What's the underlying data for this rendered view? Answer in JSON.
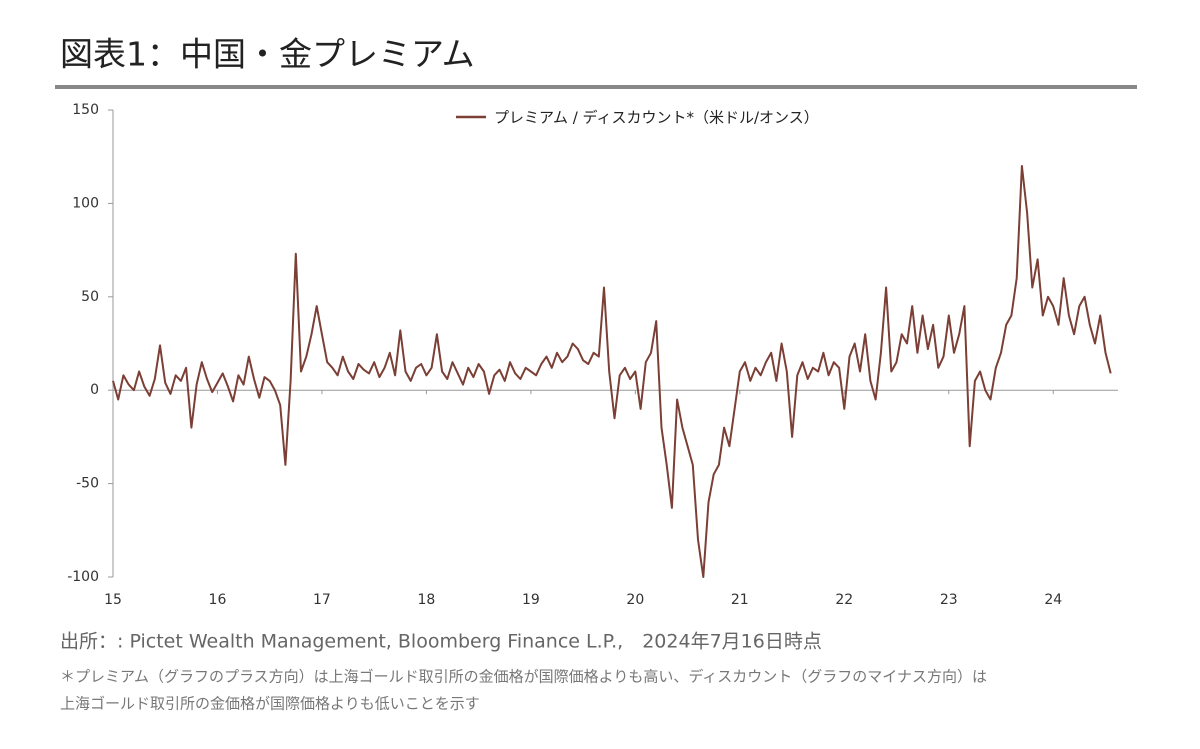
{
  "chart_data": {
    "type": "line",
    "title": "図表1：中国・金プレミアム",
    "source": "出所：: Pictet Wealth Management, Bloomberg Finance L.P.,　2024年7月16日時点",
    "notes": [
      "＊プレミアム（グラフのプラス方向）は上海ゴールド取引所の金価格が国際価格よりも高い、ディスカウント（グラフのマイナス方向）は",
      "上海ゴールド取引所の金価格が国際価格よりも低いことを示す"
    ],
    "xlim": [
      15,
      24.62
    ],
    "xticks": [
      15,
      16,
      17,
      18,
      19,
      20,
      21,
      22,
      23,
      24
    ],
    "ylim": [
      -100,
      150
    ],
    "yticks": [
      -100,
      -50,
      0,
      50,
      100,
      150
    ],
    "legend": "top",
    "x": [
      15.0,
      15.05,
      15.1,
      15.15,
      15.2,
      15.25,
      15.3,
      15.35,
      15.4,
      15.45,
      15.5,
      15.55,
      15.6,
      15.65,
      15.7,
      15.75,
      15.8,
      15.85,
      15.9,
      15.95,
      16.0,
      16.05,
      16.1,
      16.15,
      16.2,
      16.25,
      16.3,
      16.35,
      16.4,
      16.45,
      16.5,
      16.55,
      16.6,
      16.65,
      16.7,
      16.75,
      16.8,
      16.85,
      16.9,
      16.95,
      17.0,
      17.05,
      17.1,
      17.15,
      17.2,
      17.25,
      17.3,
      17.35,
      17.4,
      17.45,
      17.5,
      17.55,
      17.6,
      17.65,
      17.7,
      17.75,
      17.8,
      17.85,
      17.9,
      17.95,
      18.0,
      18.05,
      18.1,
      18.15,
      18.2,
      18.25,
      18.3,
      18.35,
      18.4,
      18.45,
      18.5,
      18.55,
      18.6,
      18.65,
      18.7,
      18.75,
      18.8,
      18.85,
      18.9,
      18.95,
      19.0,
      19.05,
      19.1,
      19.15,
      19.2,
      19.25,
      19.3,
      19.35,
      19.4,
      19.45,
      19.5,
      19.55,
      19.6,
      19.65,
      19.7,
      19.75,
      19.8,
      19.85,
      19.9,
      19.95,
      20.0,
      20.05,
      20.1,
      20.15,
      20.2,
      20.25,
      20.3,
      20.35,
      20.4,
      20.45,
      20.5,
      20.55,
      20.6,
      20.65,
      20.7,
      20.75,
      20.8,
      20.85,
      20.9,
      20.95,
      21.0,
      21.05,
      21.1,
      21.15,
      21.2,
      21.25,
      21.3,
      21.35,
      21.4,
      21.45,
      21.5,
      21.55,
      21.6,
      21.65,
      21.7,
      21.75,
      21.8,
      21.85,
      21.9,
      21.95,
      22.0,
      22.05,
      22.1,
      22.15,
      22.2,
      22.25,
      22.3,
      22.35,
      22.4,
      22.45,
      22.5,
      22.55,
      22.6,
      22.65,
      22.7,
      22.75,
      22.8,
      22.85,
      22.9,
      22.95,
      23.0,
      23.05,
      23.1,
      23.15,
      23.2,
      23.25,
      23.3,
      23.35,
      23.4,
      23.45,
      23.5,
      23.55,
      23.6,
      23.65,
      23.7,
      23.75,
      23.8,
      23.85,
      23.9,
      23.95,
      24.0,
      24.05,
      24.1,
      24.15,
      24.2,
      24.25,
      24.3,
      24.35,
      24.4,
      24.45,
      24.5,
      24.55
    ],
    "series": [
      {
        "name": "プレミアム / ディスカウント*（米ドル/オンス）",
        "color": "#7b3f35",
        "values": [
          5,
          -5,
          8,
          3,
          0,
          10,
          2,
          -3,
          6,
          24,
          4,
          -2,
          8,
          5,
          12,
          -20,
          3,
          15,
          6,
          -1,
          4,
          9,
          2,
          -6,
          8,
          3,
          18,
          6,
          -4,
          7,
          5,
          0,
          -8,
          -40,
          5,
          73,
          10,
          18,
          30,
          45,
          30,
          15,
          12,
          8,
          18,
          10,
          6,
          14,
          11,
          9,
          15,
          7,
          12,
          20,
          8,
          32,
          10,
          5,
          12,
          14,
          8,
          12,
          30,
          10,
          6,
          15,
          9,
          3,
          12,
          7,
          14,
          10,
          -2,
          8,
          11,
          5,
          15,
          9,
          6,
          12,
          10,
          8,
          14,
          18,
          12,
          20,
          15,
          18,
          25,
          22,
          16,
          14,
          20,
          18,
          55,
          10,
          -15,
          8,
          12,
          6,
          10,
          -10,
          15,
          20,
          37,
          -20,
          -40,
          -63,
          -5,
          -20,
          -30,
          -40,
          -80,
          -100,
          -60,
          -45,
          -40,
          -20,
          -30,
          -10,
          10,
          15,
          5,
          12,
          8,
          15,
          20,
          5,
          25,
          10,
          -25,
          8,
          15,
          6,
          12,
          10,
          20,
          8,
          15,
          12,
          -10,
          18,
          25,
          10,
          30,
          5,
          -5,
          20,
          55,
          10,
          15,
          30,
          25,
          45,
          20,
          40,
          22,
          35,
          12,
          18,
          40,
          20,
          30,
          45,
          -30,
          5,
          10,
          0,
          -5,
          12,
          20,
          35,
          40,
          60,
          120,
          95,
          55,
          70,
          40,
          50,
          45,
          35,
          60,
          40,
          30,
          45,
          50,
          35,
          25,
          40,
          20,
          9
        ]
      }
    ]
  }
}
